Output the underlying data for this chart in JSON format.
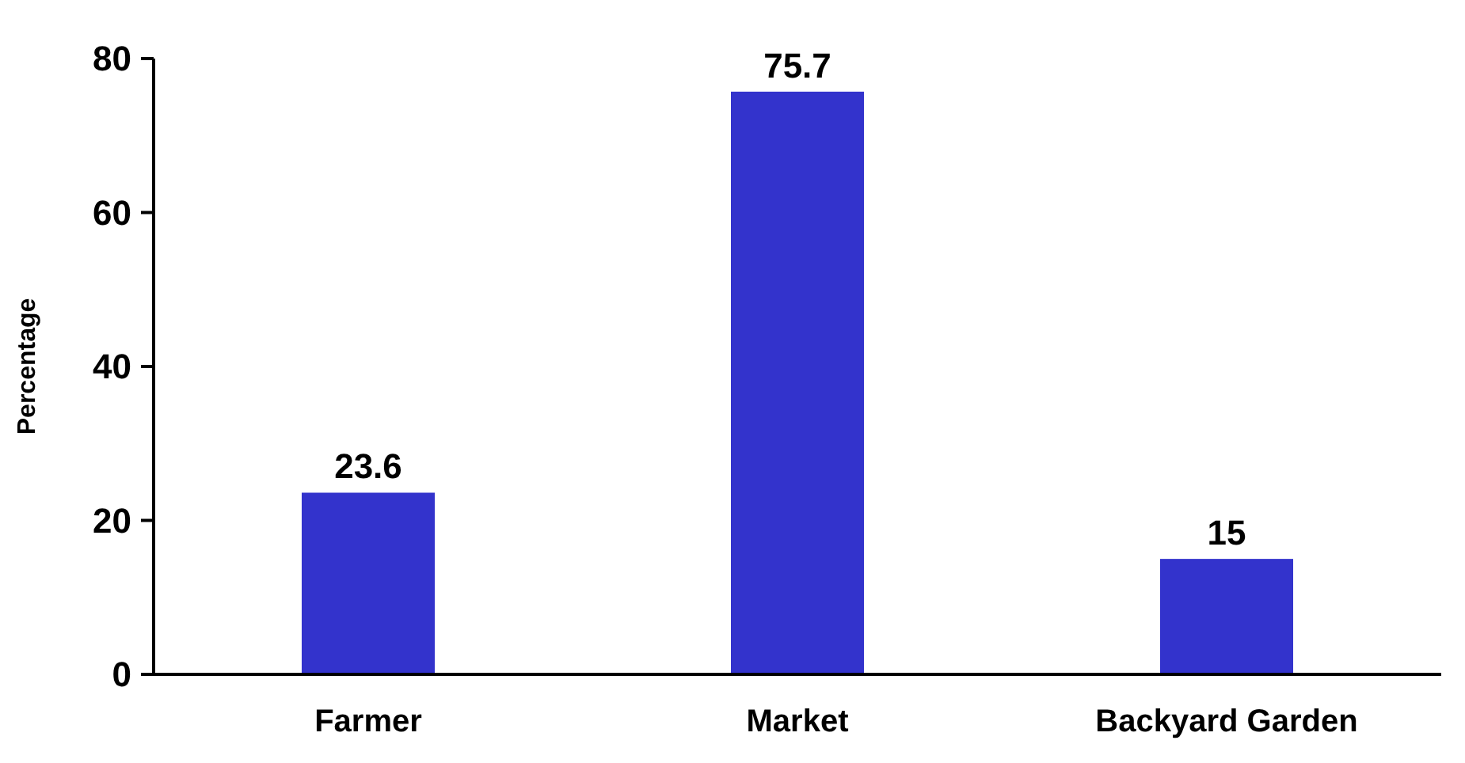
{
  "chart_data": {
    "type": "bar",
    "ylabel": "Percentage",
    "categories": [
      "Farmer",
      "Market",
      "Backyard Garden"
    ],
    "values": [
      23.6,
      75.7,
      15
    ],
    "color": "#3333cc",
    "ylim": [
      0,
      80
    ],
    "yticks": [
      0,
      20,
      40,
      60,
      80
    ],
    "data_labels": true,
    "grid": false
  }
}
